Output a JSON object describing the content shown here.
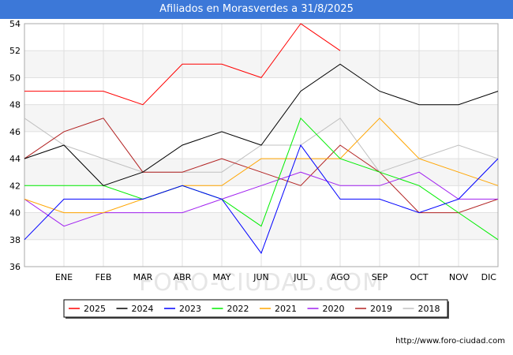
{
  "header": {
    "title": "Afiliados en Morasverdes a 31/8/2025"
  },
  "footer": {
    "url": "http://www.foro-ciudad.com"
  },
  "watermark": "FORO-CIUDAD.COM",
  "chart_data": {
    "type": "line",
    "title": "Afiliados en Morasverdes a 31/8/2025",
    "xlabel": "",
    "ylabel": "",
    "categories": [
      "",
      "ENE",
      "FEB",
      "MAR",
      "ABR",
      "MAY",
      "JUN",
      "JUL",
      "AGO",
      "SEP",
      "OCT",
      "NOV",
      "DIC"
    ],
    "ylim": [
      36,
      54
    ],
    "yticks": [
      36,
      38,
      40,
      42,
      44,
      46,
      48,
      50,
      52,
      54
    ],
    "grid": true,
    "legend_position": "bottom",
    "series": [
      {
        "name": "2025",
        "color": "#ff0000",
        "values": [
          49,
          49,
          49,
          48,
          51,
          51,
          50,
          54,
          52,
          null,
          null,
          null,
          null
        ]
      },
      {
        "name": "2024",
        "color": "#000000",
        "values": [
          44,
          45,
          42,
          43,
          45,
          46,
          45,
          49,
          51,
          49,
          48,
          48,
          49
        ]
      },
      {
        "name": "2023",
        "color": "#0000ff",
        "values": [
          38,
          41,
          41,
          41,
          42,
          41,
          37,
          45,
          41,
          41,
          40,
          41,
          44
        ]
      },
      {
        "name": "2022",
        "color": "#00ee00",
        "values": [
          42,
          42,
          42,
          41,
          42,
          41,
          39,
          47,
          44,
          43,
          42,
          40,
          38
        ]
      },
      {
        "name": "2021",
        "color": "#ffa500",
        "values": [
          41,
          40,
          40,
          41,
          42,
          42,
          44,
          44,
          44,
          47,
          44,
          43,
          42
        ]
      },
      {
        "name": "2020",
        "color": "#a020f0",
        "values": [
          41,
          39,
          40,
          40,
          40,
          41,
          42,
          43,
          42,
          42,
          43,
          41,
          41
        ]
      },
      {
        "name": "2019",
        "color": "#b22222",
        "values": [
          44,
          46,
          47,
          43,
          43,
          44,
          43,
          42,
          45,
          43,
          40,
          40,
          41
        ]
      },
      {
        "name": "2018",
        "color": "#c0c0c0",
        "values": [
          47,
          45,
          44,
          43,
          43,
          43,
          45,
          45,
          47,
          43,
          44,
          45,
          44
        ]
      }
    ]
  }
}
